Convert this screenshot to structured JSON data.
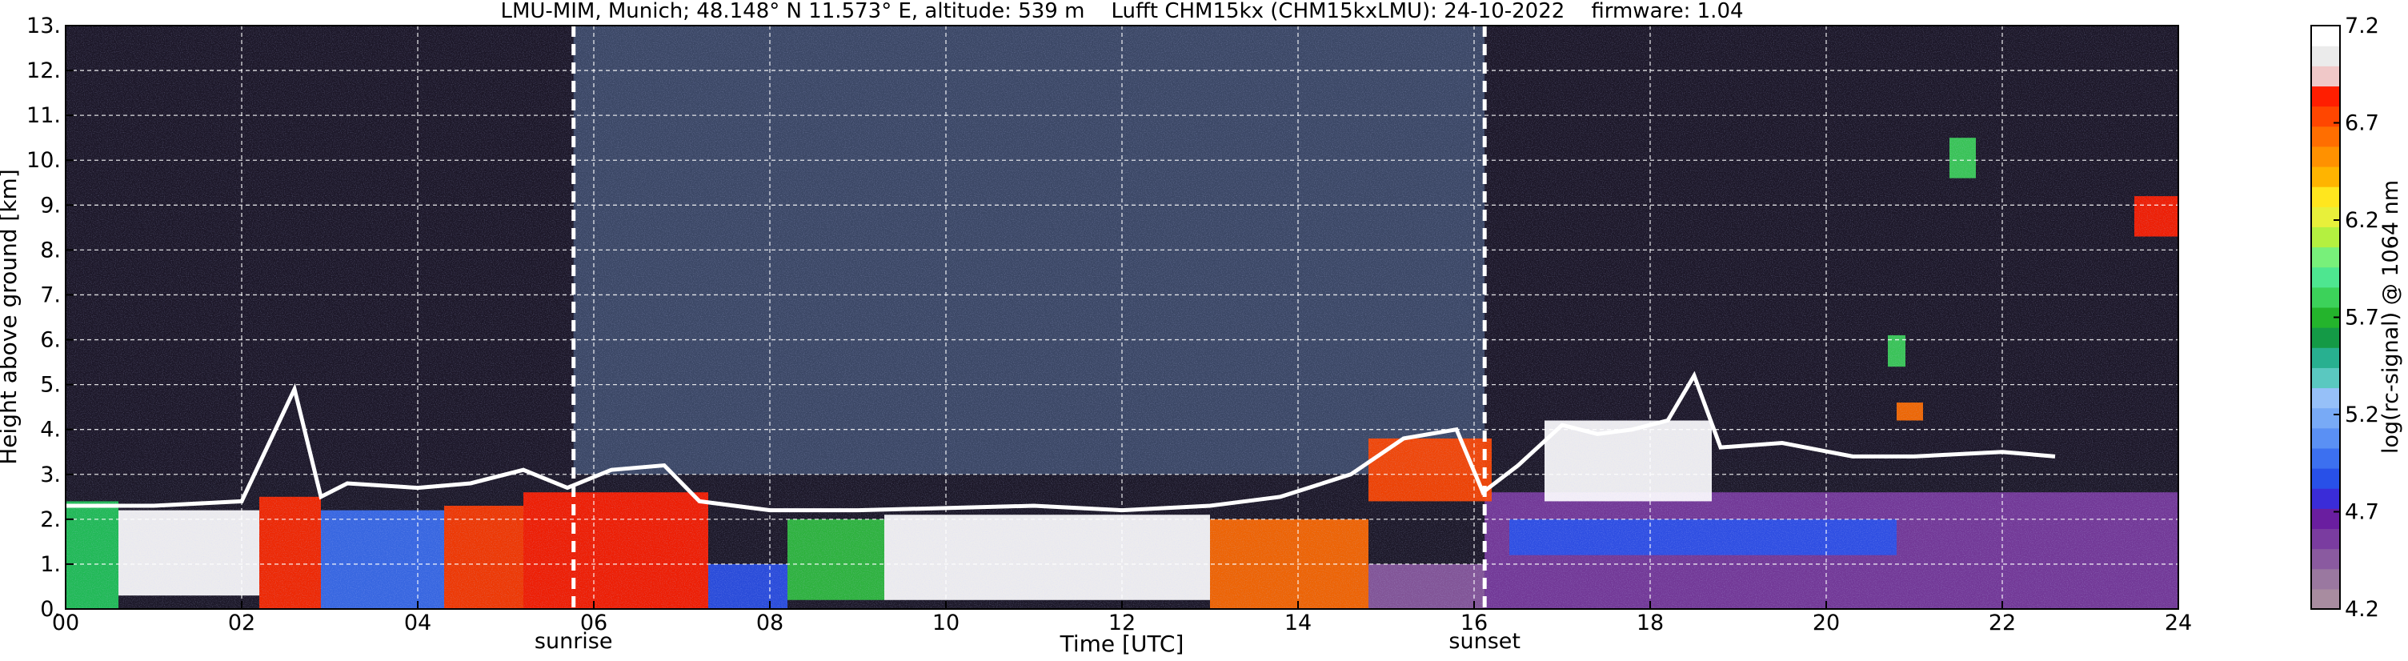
{
  "chart_data": {
    "type": "heatmap",
    "title": "LMU-MIM, Munich; 48.148° N 11.573° E, altitude: 539 m    Lufft CHM15kx (CHM15kxLMU): 24-10-2022    firmware: 1.04",
    "xlabel": "Time [UTC]",
    "ylabel": "Height above ground [km]",
    "xlim": [
      0,
      24
    ],
    "ylim": [
      0,
      13
    ],
    "x_ticks": [
      "00",
      "02",
      "04",
      "06",
      "08",
      "10",
      "12",
      "14",
      "16",
      "18",
      "20",
      "22",
      "24"
    ],
    "y_ticks": [
      "0.",
      "1.",
      "2.",
      "3.",
      "4.",
      "5.",
      "6.",
      "7.",
      "8.",
      "9.",
      "10.",
      "11.",
      "12.",
      "13."
    ],
    "grid": true,
    "colorbar": {
      "label": "log(rc-signal) @ 1064 nm",
      "range": [
        4.2,
        7.2
      ],
      "ticks": [
        "4.2",
        "4.7",
        "5.2",
        "5.7",
        "6.2",
        "6.7",
        "7.2"
      ],
      "colors": [
        "#a88ca0",
        "#9a78a0",
        "#8a5aa0",
        "#7a3ca0",
        "#6a1ea0",
        "#3a2cd8",
        "#2850e8",
        "#3c70f0",
        "#5a90f4",
        "#78aaf6",
        "#96c0f8",
        "#5ac8c0",
        "#28b090",
        "#149a46",
        "#24b42c",
        "#3cd25a",
        "#4ee690",
        "#78f07a",
        "#b4f040",
        "#e8f03a",
        "#ffe61e",
        "#ffb400",
        "#ff9100",
        "#ff6e00",
        "#ff4600",
        "#ff1e00",
        "#f0c8c8",
        "#ebebeb",
        "#ffffff"
      ]
    },
    "markers": [
      {
        "label": "sunrise",
        "time": 5.77
      },
      {
        "label": "sunset",
        "time": 16.12
      }
    ],
    "regions": [
      {
        "name": "night noise",
        "x": [
          0,
          5.77
        ],
        "y": [
          3.0,
          13.0
        ],
        "color": "#1c1828"
      },
      {
        "name": "daylight noise",
        "x": [
          5.77,
          16.12
        ],
        "y": [
          3.0,
          13.0
        ],
        "color": "#3e4c6a"
      },
      {
        "name": "night noise",
        "x": [
          16.12,
          24.0
        ],
        "y": [
          3.3,
          13.0
        ],
        "color": "#1c1828"
      },
      {
        "name": "aerosol layer",
        "x": [
          0,
          0.6
        ],
        "y": [
          0.0,
          2.4
        ],
        "color": "#22c85a"
      },
      {
        "name": "aerosol layer",
        "x": [
          0.6,
          2.2
        ],
        "y": [
          0.3,
          2.2
        ],
        "color": "#ffffff"
      },
      {
        "name": "aerosol layer",
        "x": [
          2.2,
          2.9
        ],
        "y": [
          0.0,
          2.5
        ],
        "color": "#ff2a00"
      },
      {
        "name": "aerosol layer",
        "x": [
          2.9,
          4.3
        ],
        "y": [
          0.0,
          2.2
        ],
        "color": "#3a6ef0"
      },
      {
        "name": "aerosol layer",
        "x": [
          4.3,
          5.2
        ],
        "y": [
          0.0,
          2.3
        ],
        "color": "#ff3c00"
      },
      {
        "name": "aerosol layer",
        "x": [
          5.2,
          7.3
        ],
        "y": [
          0.0,
          2.6
        ],
        "color": "#ff2000"
      },
      {
        "name": "aerosol layer",
        "x": [
          7.3,
          8.2
        ],
        "y": [
          0.0,
          1.0
        ],
        "color": "#2a50e8"
      },
      {
        "name": "aerosol layer",
        "x": [
          8.2,
          9.3
        ],
        "y": [
          0.2,
          2.0
        ],
        "color": "#30c040"
      },
      {
        "name": "aerosol layer",
        "x": [
          9.3,
          13.0
        ],
        "y": [
          0.2,
          2.1
        ],
        "color": "#ffffff"
      },
      {
        "name": "aerosol layer",
        "x": [
          13.0,
          14.8
        ],
        "y": [
          0.0,
          2.0
        ],
        "color": "#ff6a00"
      },
      {
        "name": "boundary layer",
        "x": [
          14.8,
          16.12
        ],
        "y": [
          0.0,
          1.0
        ],
        "color": "#8a5aa0"
      },
      {
        "name": "boundary layer",
        "x": [
          16.12,
          24.0
        ],
        "y": [
          0.0,
          2.6
        ],
        "color": "#7a3ca0"
      },
      {
        "name": "boundary layer",
        "x": [
          16.4,
          20.8
        ],
        "y": [
          1.2,
          2.0
        ],
        "color": "#2850e8"
      },
      {
        "name": "aerosol layer",
        "x": [
          16.8,
          18.7
        ],
        "y": [
          2.4,
          4.2
        ],
        "color": "#ffffff"
      },
      {
        "name": "aerosol layer",
        "x": [
          14.8,
          16.2
        ],
        "y": [
          2.4,
          3.8
        ],
        "color": "#ff4600"
      },
      {
        "name": "cloud",
        "x": [
          20.7,
          20.9
        ],
        "y": [
          5.4,
          6.1
        ],
        "color": "#3cd25a"
      },
      {
        "name": "cloud",
        "x": [
          20.8,
          21.1
        ],
        "y": [
          4.2,
          4.6
        ],
        "color": "#ff6e00"
      },
      {
        "name": "cloud",
        "x": [
          23.5,
          24.0
        ],
        "y": [
          8.3,
          9.2
        ],
        "color": "#ff2000"
      },
      {
        "name": "cloud",
        "x": [
          21.4,
          21.7
        ],
        "y": [
          9.6,
          10.5
        ],
        "color": "#3cd25a"
      }
    ],
    "cloud_base_height_km": [
      [
        0.0,
        2.3
      ],
      [
        1.0,
        2.3
      ],
      [
        2.0,
        2.4
      ],
      [
        2.6,
        4.9
      ],
      [
        2.9,
        2.5
      ],
      [
        3.2,
        2.8
      ],
      [
        4.0,
        2.7
      ],
      [
        4.6,
        2.8
      ],
      [
        5.2,
        3.1
      ],
      [
        5.7,
        2.7
      ],
      [
        6.2,
        3.1
      ],
      [
        6.8,
        3.2
      ],
      [
        7.2,
        2.4
      ],
      [
        8.0,
        2.2
      ],
      [
        9.0,
        2.2
      ],
      [
        10.0,
        2.25
      ],
      [
        11.0,
        2.3
      ],
      [
        12.0,
        2.2
      ],
      [
        13.0,
        2.3
      ],
      [
        13.8,
        2.5
      ],
      [
        14.6,
        3.0
      ],
      [
        15.2,
        3.8
      ],
      [
        15.8,
        4.0
      ],
      [
        16.1,
        2.6
      ],
      [
        16.5,
        3.2
      ],
      [
        17.0,
        4.1
      ],
      [
        17.4,
        3.9
      ],
      [
        17.8,
        4.0
      ],
      [
        18.2,
        4.2
      ],
      [
        18.5,
        5.2
      ],
      [
        18.8,
        3.6
      ],
      [
        19.5,
        3.7
      ],
      [
        20.3,
        3.4
      ],
      [
        21.0,
        3.4
      ],
      [
        22.0,
        3.5
      ],
      [
        22.6,
        3.4
      ]
    ]
  }
}
